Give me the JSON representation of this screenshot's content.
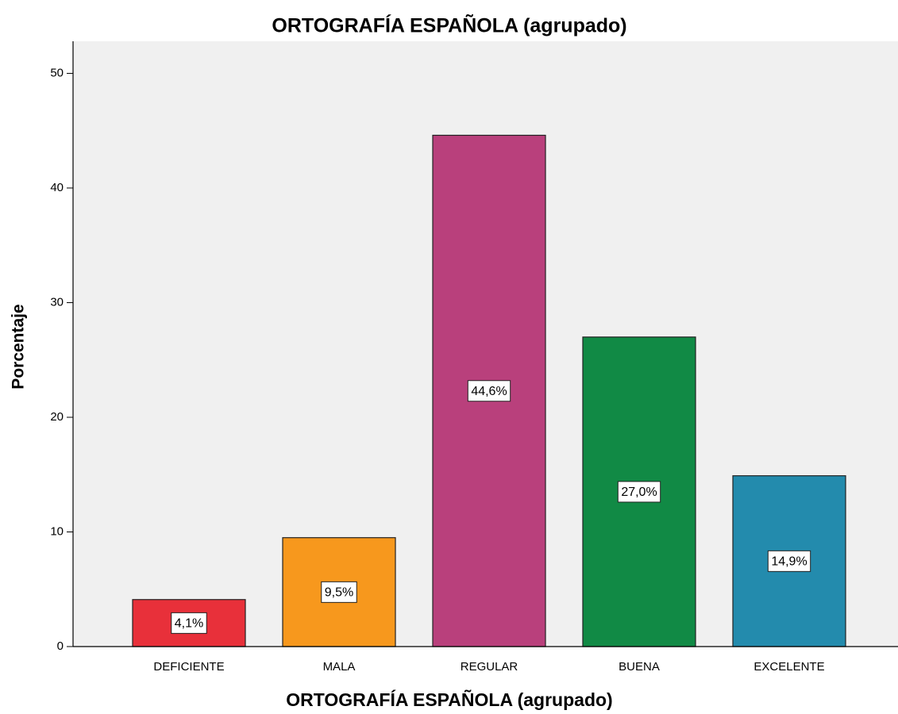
{
  "chart_data": {
    "type": "bar",
    "title": "ORTOGRAFÍA ESPAÑOLA (agrupado)",
    "x_label": "ORTOGRAFÍA ESPAÑOLA (agrupado)",
    "y_label": "Porcentaje",
    "categories": [
      "DEFICIENTE",
      "MALA",
      "REGULAR",
      "BUENA",
      "EXCELENTE"
    ],
    "values": [
      4.1,
      9.5,
      44.6,
      27.0,
      14.9
    ],
    "value_labels": [
      "4,1%",
      "9,5%",
      "44,6%",
      "27,0%",
      "14,9%"
    ],
    "colors": [
      "#e8303a",
      "#f7981d",
      "#b9407c",
      "#118a45",
      "#238bad"
    ],
    "ylim": [
      0,
      52.8
    ],
    "yticks": [
      0,
      10,
      20,
      30,
      40,
      50
    ],
    "grid": false
  }
}
